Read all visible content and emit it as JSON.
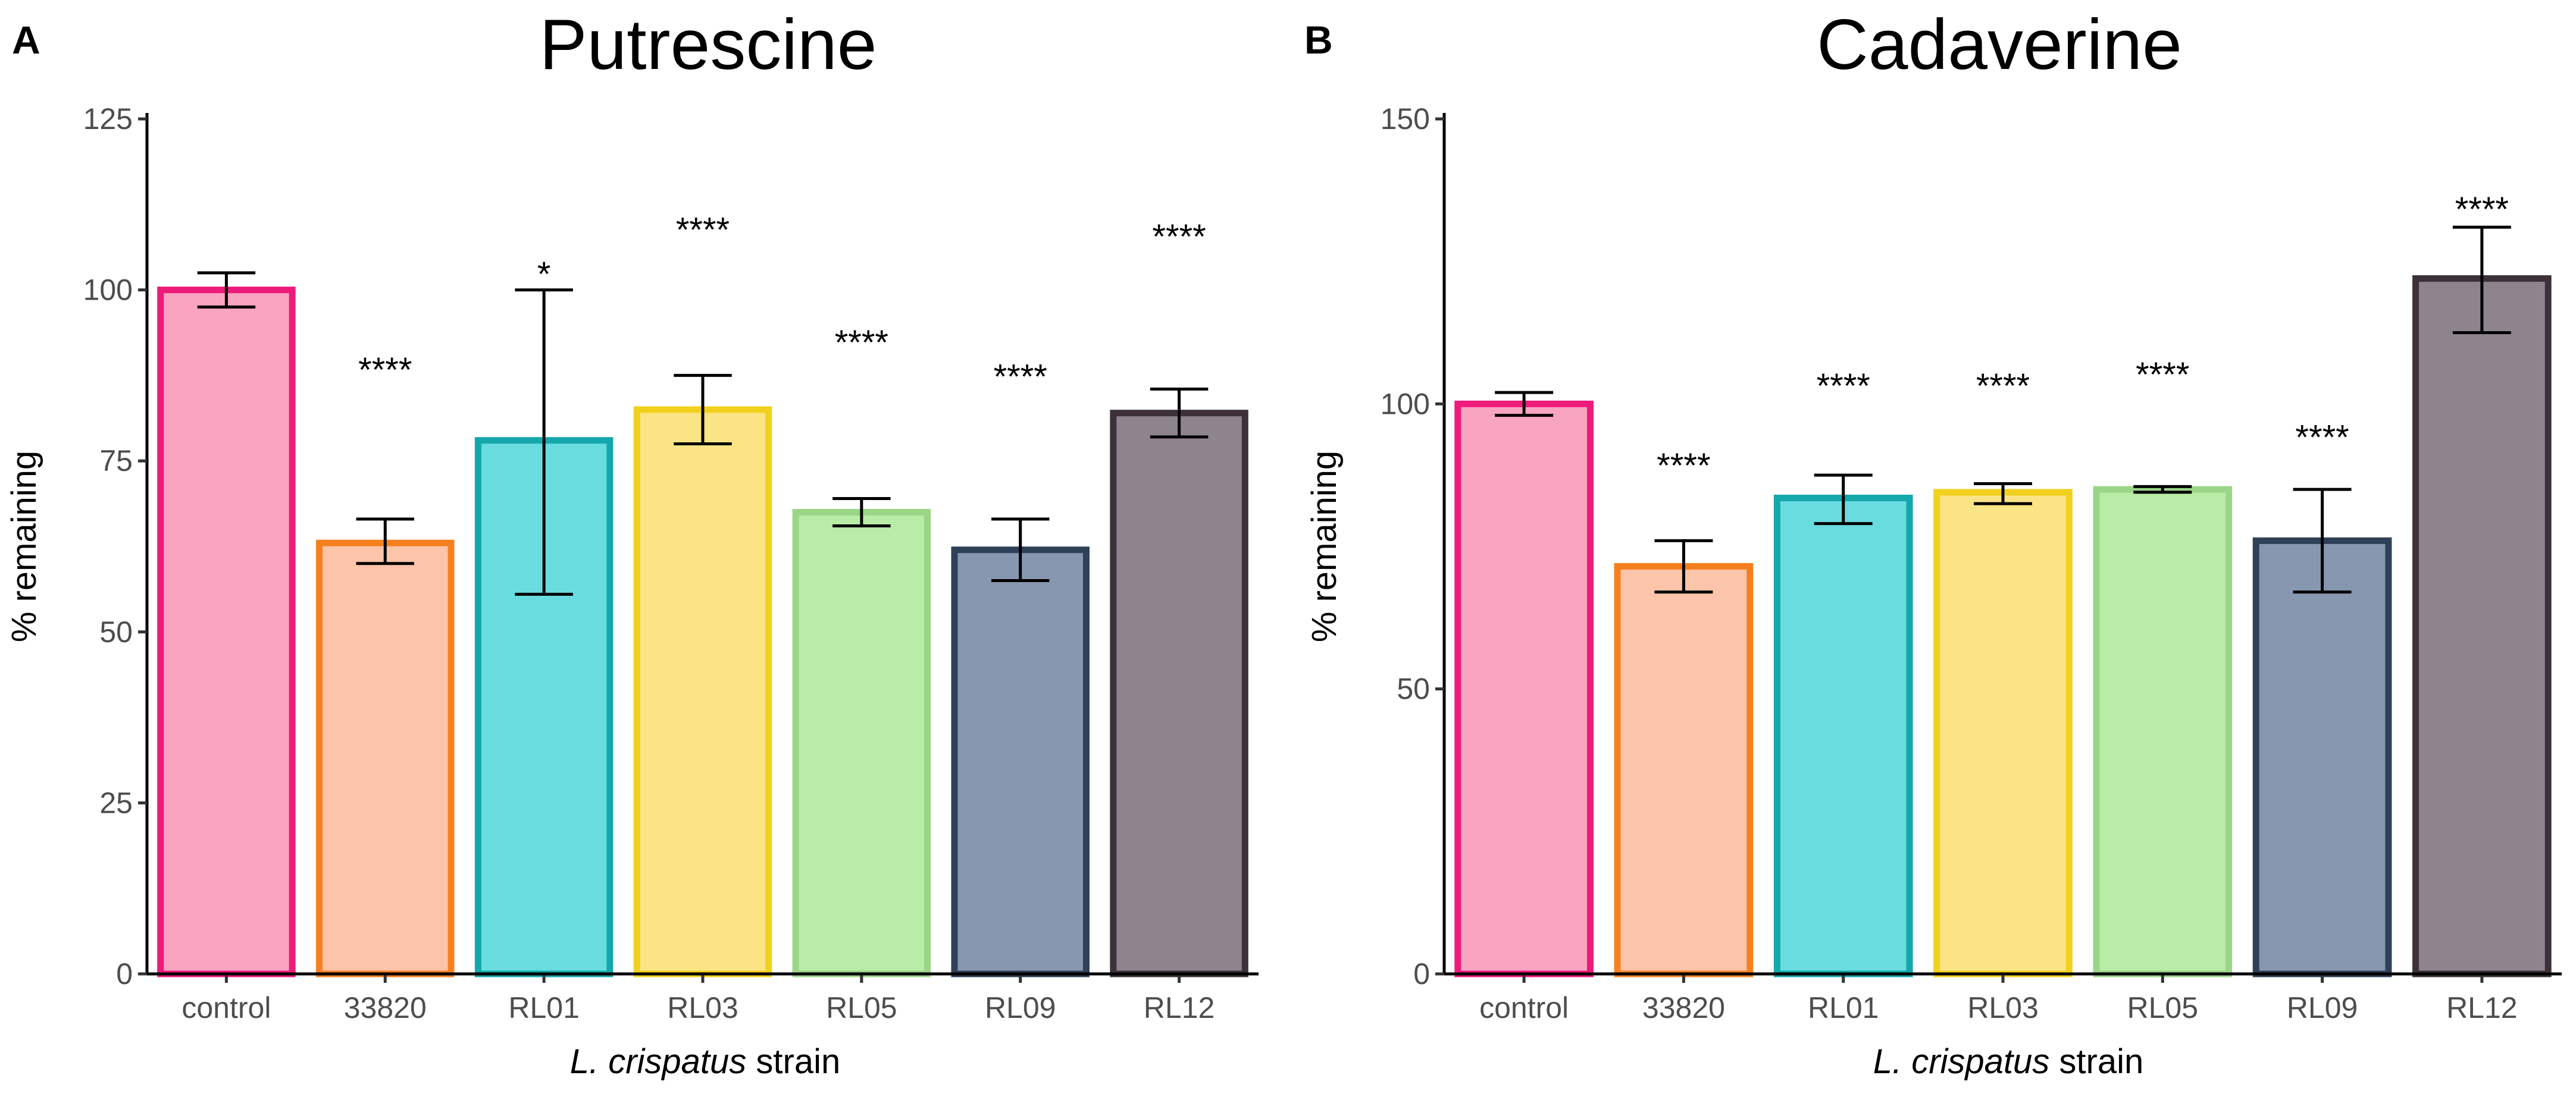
{
  "chart_data": [
    {
      "type": "bar",
      "panel": "A",
      "title": "Putrescine",
      "ylabel": "% remaining",
      "xlabel_italic": "L. crispatus",
      "xlabel_rest": " strain",
      "ylim": [
        0,
        125
      ],
      "yticks": [
        0,
        25,
        50,
        75,
        100,
        125
      ],
      "categories": [
        "control",
        "33820",
        "RL01",
        "RL03",
        "RL05",
        "RL09",
        "RL12"
      ],
      "values": [
        100,
        63,
        78,
        82.5,
        67.5,
        62,
        82
      ],
      "error_low": [
        97.5,
        60,
        55.5,
        77.5,
        65.5,
        57.5,
        78.5
      ],
      "error_high": [
        102.5,
        66.5,
        100,
        87.5,
        69.5,
        66.5,
        85.5
      ],
      "significance": [
        "",
        "****",
        "*",
        "****",
        "****",
        "****",
        "****"
      ],
      "significance_y": [
        null,
        89,
        103,
        109.5,
        93,
        88,
        108.5
      ]
    },
    {
      "type": "bar",
      "panel": "B",
      "title": "Cadaverine",
      "ylabel": "% remaining",
      "xlabel_italic": "L. crispatus",
      "xlabel_rest": " strain",
      "ylim": [
        0,
        150
      ],
      "yticks": [
        0,
        50,
        100,
        150
      ],
      "categories": [
        "control",
        "33820",
        "RL01",
        "RL03",
        "RL05",
        "RL09",
        "RL12"
      ],
      "values": [
        100,
        71.5,
        83.5,
        84.5,
        85,
        76,
        122
      ],
      "error_low": [
        98,
        67,
        79,
        82.5,
        84.5,
        67,
        112.5
      ],
      "error_high": [
        102,
        76,
        87.5,
        86,
        85.5,
        85,
        131
      ],
      "significance": [
        "",
        "****",
        "****",
        "****",
        "****",
        "****",
        "****"
      ],
      "significance_y": [
        null,
        90,
        104,
        104,
        106,
        95,
        135
      ]
    }
  ],
  "bar_colors": [
    {
      "fill": "#f9a4c0",
      "stroke": "#ee1a7c"
    },
    {
      "fill": "#fcc4a9",
      "stroke": "#f6801f"
    },
    {
      "fill": "#69dcdf",
      "stroke": "#14a7ab"
    },
    {
      "fill": "#fbe486",
      "stroke": "#f2d11d"
    },
    {
      "fill": "#b9eca6",
      "stroke": "#9bd587"
    },
    {
      "fill": "#8797b0",
      "stroke": "#2f4158"
    },
    {
      "fill": "#8e848d",
      "stroke": "#3d3139"
    }
  ]
}
